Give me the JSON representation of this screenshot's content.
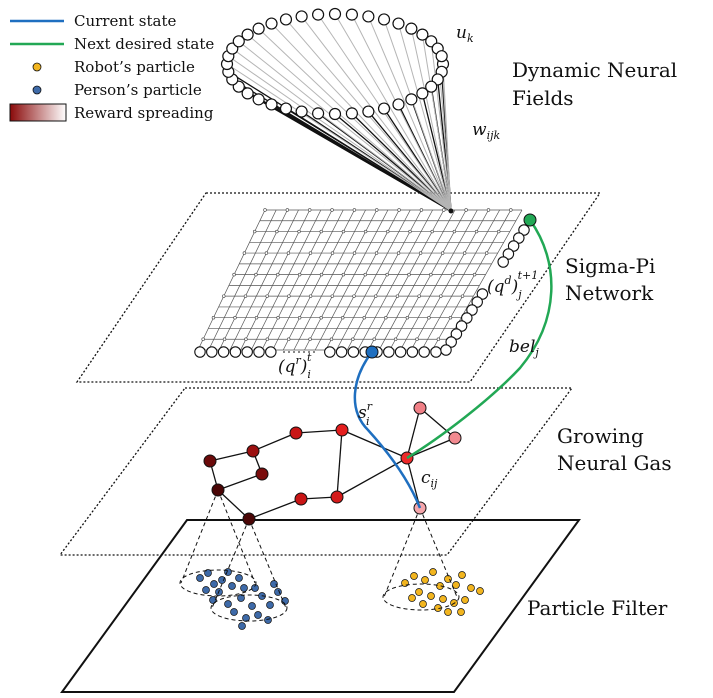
{
  "legend": {
    "current_state": "Current state",
    "next_state": "Next desired state",
    "robot_particle": "Robot’s particle",
    "person_particle": "Person’s particle",
    "reward": "Reward spreading"
  },
  "layers": {
    "dnf_line1": "Dynamic Neural",
    "dnf_line2": "Fields",
    "sigma_line1": "Sigma-Pi",
    "sigma_line2": "Network",
    "gng_line1": "Growing",
    "gng_line2": "Neural Gas",
    "pf": "Particle Filter"
  },
  "math": {
    "u": "u",
    "u_sub": "k",
    "w": "w",
    "w_sub": "ijk",
    "qd": "(q",
    "qd_sup": "d",
    "qd_close": ")",
    "qd_sub": "j",
    "qd_time": "t+1",
    "qr": "(q",
    "qr_sup": "r",
    "qr_close": ")",
    "qr_sub": "i",
    "qr_time": "t",
    "bel": "bel",
    "bel_sub": "j",
    "s": "s",
    "s_sup": "r",
    "s_sub": "i",
    "c": "c",
    "c_sub": "ij"
  },
  "colors": {
    "current": "#1f6fc0",
    "next": "#22a855",
    "robot": "#f2b51f",
    "person": "#3e6aa8"
  }
}
